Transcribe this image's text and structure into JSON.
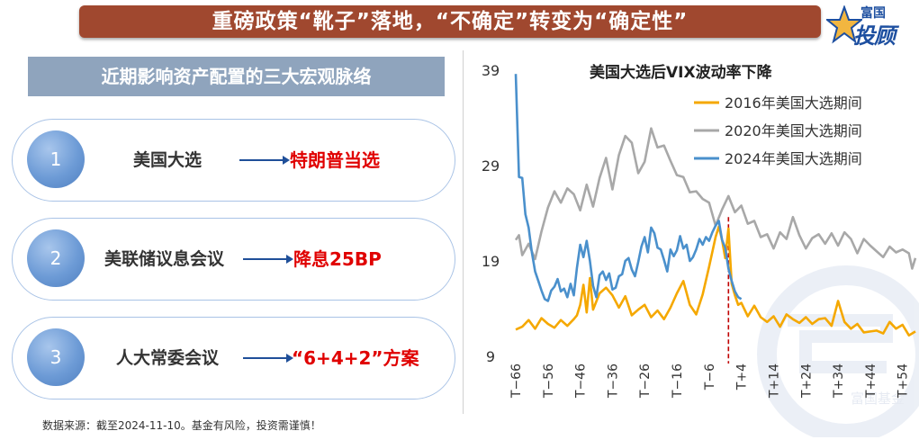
{
  "header": {
    "title": "重磅政策“靴子”落地，“不确定”转变为“确定性”"
  },
  "logo": {
    "top": "富国",
    "bottom": "投顾",
    "watermark": "富国基金",
    "icon": "star-icon",
    "brand_color": "#1d4fa0"
  },
  "section": {
    "title": "近期影响资产配置的三大宏观脉络"
  },
  "items": [
    {
      "num": "1",
      "label": "美国大选",
      "result": "特朗普当选"
    },
    {
      "num": "2",
      "label": "美联储议息会议",
      "result": "降息25BP"
    },
    {
      "num": "3",
      "label": "人大常委会议",
      "result": "“6+4+2”方案"
    }
  ],
  "footer": {
    "source": "数据来源：截至2024-11-10。基金有风险，投资需谨慎！"
  },
  "colors": {
    "banner": "#a0482f",
    "section": "#8fa4bd",
    "accent_red": "#e00000",
    "circle": "#6d9bd6"
  },
  "chart_data": {
    "type": "line",
    "title": "美国大选后VIX波动率下降",
    "x_ticks": [
      "T-66",
      "T-56",
      "T-46",
      "T-36",
      "T-26",
      "T-16",
      "T-6",
      "T+4",
      "T+14",
      "T+24",
      "T+34",
      "T+44",
      "T+54"
    ],
    "y_ticks": [
      9,
      19,
      29,
      39
    ],
    "ylim": [
      9,
      39
    ],
    "xlim": [
      -66,
      58
    ],
    "event_day": 0,
    "legend_position": "top-right",
    "series": [
      {
        "name": "2016年美国大选期间",
        "color": "#f5a800",
        "x": [
          -66,
          -64,
          -62,
          -60,
          -58,
          -56,
          -54,
          -52,
          -50,
          -48,
          -47,
          -46,
          -45,
          -44,
          -43,
          -42,
          -40,
          -38,
          -36,
          -34,
          -32,
          -30,
          -28,
          -26,
          -24,
          -22,
          -20,
          -18,
          -16,
          -14,
          -12,
          -10,
          -8,
          -6,
          -4,
          -3,
          -2,
          -1,
          0,
          1,
          2,
          3,
          4,
          6,
          8,
          10,
          12,
          14,
          16,
          18,
          20,
          22,
          24,
          26,
          28,
          30,
          32,
          34,
          36,
          38,
          40,
          42,
          44,
          46,
          48,
          50,
          52,
          54,
          56,
          58
        ],
        "y": [
          11.8,
          12.1,
          12.8,
          11.9,
          13.0,
          12.4,
          12.0,
          12.8,
          12.2,
          12.9,
          13.3,
          14.4,
          16.5,
          13.6,
          17.2,
          13.9,
          15.6,
          16.2,
          15.4,
          14.1,
          15.3,
          13.3,
          13.9,
          14.4,
          13.1,
          13.8,
          12.9,
          14.1,
          15.6,
          16.9,
          14.4,
          13.4,
          15.5,
          18.4,
          21.5,
          22.6,
          21.2,
          19.3,
          22.4,
          16.6,
          15.4,
          14.4,
          14.6,
          13.2,
          14.3,
          13.1,
          12.6,
          13.2,
          12.1,
          13.4,
          12.9,
          12.5,
          13.1,
          12.4,
          12.9,
          13.0,
          12.2,
          14.8,
          12.6,
          11.9,
          12.4,
          11.5,
          11.6,
          11.7,
          11.4,
          12.6,
          11.9,
          12.3,
          11.2,
          11.6
        ]
      },
      {
        "name": "2020年美国大选期间",
        "color": "#a8a8a8",
        "x": [
          -66,
          -65,
          -64,
          -62,
          -60,
          -58,
          -56,
          -54,
          -52,
          -50,
          -48,
          -46,
          -44,
          -42,
          -40,
          -38,
          -36,
          -34,
          -32,
          -30,
          -28,
          -26,
          -24,
          -22,
          -20,
          -18,
          -16,
          -14,
          -12,
          -10,
          -8,
          -6,
          -4,
          -2,
          0,
          2,
          4,
          6,
          8,
          10,
          12,
          14,
          16,
          18,
          20,
          22,
          24,
          26,
          28,
          30,
          32,
          34,
          36,
          38,
          40,
          42,
          44,
          46,
          48,
          50,
          52,
          54,
          56,
          57,
          58
        ],
        "y": [
          21.2,
          21.7,
          19.6,
          20.8,
          19.2,
          22.1,
          24.6,
          26.3,
          25.1,
          26.6,
          26.0,
          24.3,
          27.0,
          24.7,
          27.7,
          29.8,
          26.5,
          30.1,
          32.1,
          31.4,
          28.2,
          29.4,
          32.9,
          30.9,
          31.1,
          29.5,
          28.0,
          27.8,
          26.2,
          26.3,
          25.5,
          25.1,
          22.7,
          24.4,
          25.8,
          24.1,
          24.8,
          22.9,
          23.2,
          21.5,
          21.8,
          20.3,
          22.0,
          21.3,
          23.6,
          21.7,
          20.3,
          21.4,
          21.8,
          20.8,
          21.9,
          20.6,
          22.0,
          21.3,
          19.8,
          21.3,
          20.6,
          20.0,
          19.4,
          20.5,
          19.9,
          20.2,
          19.8,
          18.2,
          19.3
        ]
      },
      {
        "name": "2024年美国大选期间",
        "color": "#4a90cc",
        "x": [
          -66,
          -65,
          -64,
          -63,
          -62,
          -61,
          -60,
          -59,
          -58,
          -57,
          -56,
          -55,
          -54,
          -53,
          -52,
          -51,
          -50,
          -49,
          -48,
          -47,
          -46,
          -45,
          -44,
          -43,
          -42,
          -41,
          -40,
          -39,
          -38,
          -37,
          -36,
          -35,
          -34,
          -33,
          -32,
          -31,
          -30,
          -29,
          -28,
          -27,
          -26,
          -25,
          -24,
          -23,
          -22,
          -21,
          -20,
          -19,
          -18,
          -17,
          -16,
          -15,
          -14,
          -13,
          -12,
          -11,
          -10,
          -9,
          -8,
          -7,
          -6,
          -5,
          -4,
          -3,
          -2,
          -1,
          0,
          1,
          2,
          3,
          4
        ],
        "y": [
          38.6,
          27.8,
          27.7,
          23.9,
          22.5,
          19.9,
          17.9,
          16.9,
          15.9,
          15.0,
          14.8,
          15.9,
          16.3,
          17.1,
          15.8,
          16.1,
          15.2,
          16.6,
          15.4,
          18.3,
          20.7,
          19.4,
          21.1,
          19.0,
          16.4,
          15.2,
          17.5,
          17.9,
          17.0,
          17.7,
          16.0,
          16.2,
          17.4,
          17.6,
          19.0,
          19.3,
          18.1,
          17.4,
          18.9,
          20.5,
          21.5,
          19.9,
          22.5,
          21.9,
          20.4,
          20.2,
          19.1,
          17.9,
          20.2,
          19.5,
          20.1,
          21.6,
          20.3,
          20.7,
          19.0,
          19.4,
          20.2,
          21.3,
          20.7,
          21.5,
          21.1,
          22.0,
          22.7,
          23.2,
          21.2,
          20.4,
          18.2,
          16.9,
          15.8,
          15.2,
          15.0
        ]
      }
    ]
  }
}
